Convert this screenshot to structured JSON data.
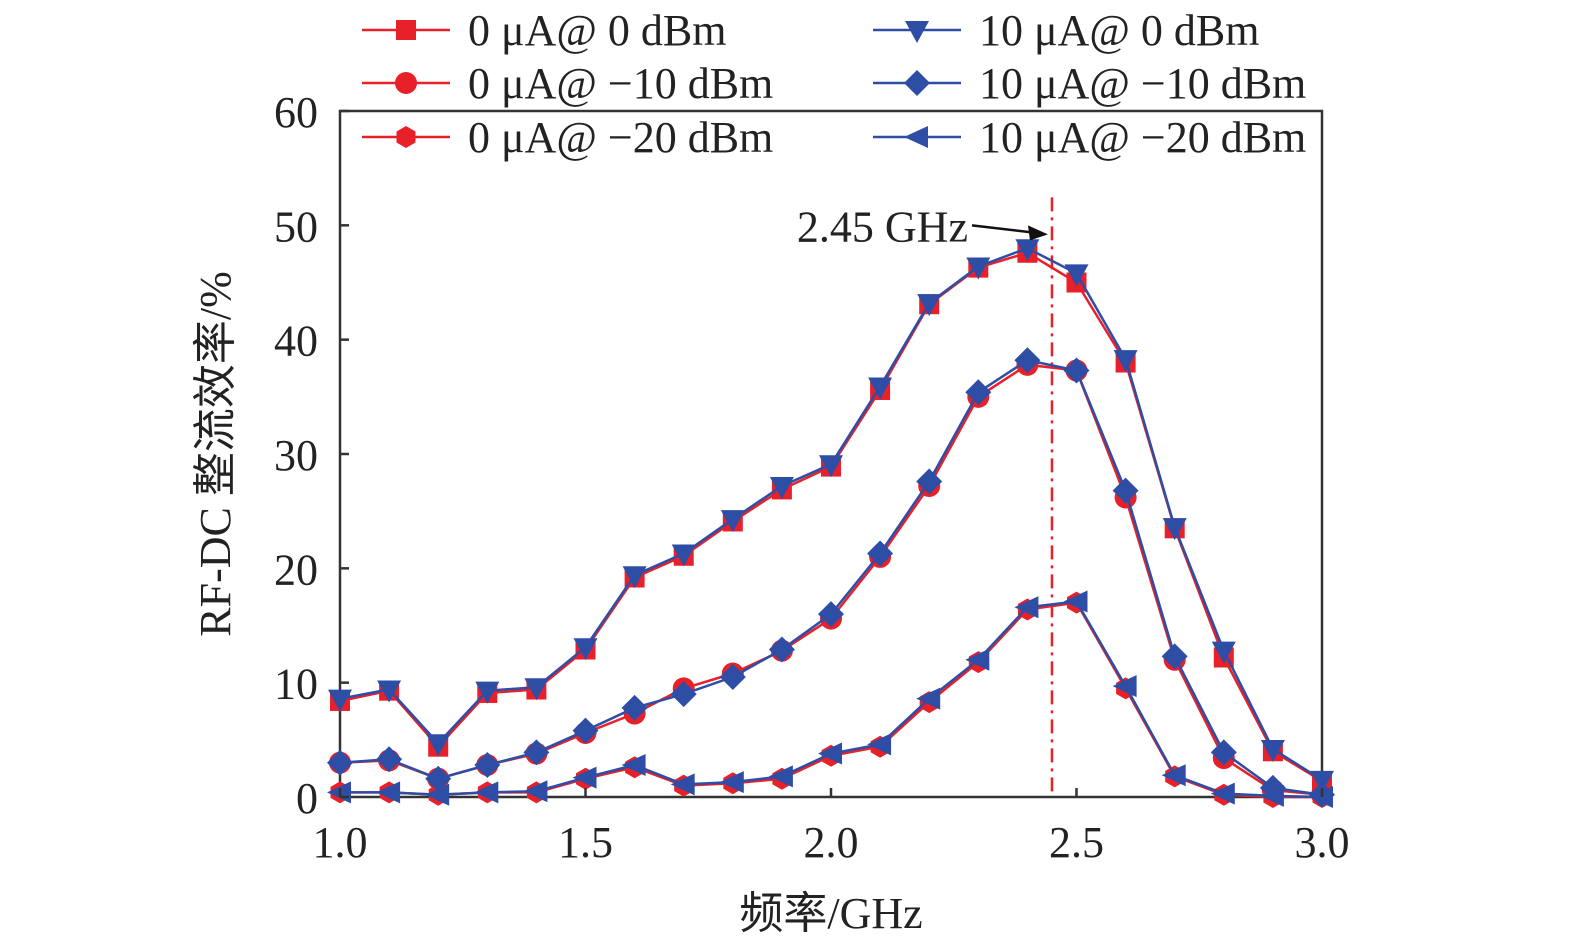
{
  "chart_data": {
    "type": "line",
    "title": "",
    "xlabel": "频率/GHz",
    "ylabel": "RF-DC 整流效率/%",
    "xlim": [
      1.0,
      3.0
    ],
    "ylim": [
      0,
      60
    ],
    "xticks": [
      "1.0",
      "1.5",
      "2.0",
      "2.5",
      "3.0"
    ],
    "xtick_values": [
      1.0,
      1.5,
      2.0,
      2.5,
      3.0
    ],
    "yticks": [
      "0",
      "10",
      "20",
      "30",
      "40",
      "50",
      "60"
    ],
    "ytick_values": [
      0,
      10,
      20,
      30,
      40,
      50,
      60
    ],
    "grid": false,
    "legend_position": "top",
    "x": [
      1.0,
      1.1,
      1.2,
      1.3,
      1.4,
      1.5,
      1.6,
      1.7,
      1.8,
      1.9,
      2.0,
      2.1,
      2.2,
      2.3,
      2.4,
      2.5,
      2.6,
      2.7,
      2.8,
      2.9,
      3.0
    ],
    "series": [
      {
        "name": "0 μA@ 0 dBm",
        "color": "#e8202a",
        "marker": "square",
        "values": [
          8.4,
          9.3,
          4.4,
          9.1,
          9.4,
          12.9,
          19.2,
          21.1,
          24.1,
          26.9,
          28.9,
          35.6,
          43.1,
          46.3,
          47.6,
          45.0,
          38.0,
          23.5,
          12.2,
          4.0,
          1.4
        ]
      },
      {
        "name": "0 μA@ −10 dBm",
        "color": "#e8202a",
        "marker": "circle",
        "values": [
          3.0,
          3.2,
          1.6,
          2.8,
          3.8,
          5.6,
          7.3,
          9.5,
          10.8,
          12.8,
          15.6,
          21.0,
          27.2,
          35.0,
          37.8,
          37.3,
          26.2,
          12.0,
          3.4,
          0.6,
          0.2
        ]
      },
      {
        "name": "0 μA@ −20 dBm",
        "color": "#e8202a",
        "marker": "hexagon",
        "values": [
          0.4,
          0.4,
          0.2,
          0.4,
          0.4,
          1.6,
          2.6,
          1.0,
          1.2,
          1.6,
          3.6,
          4.4,
          8.3,
          11.8,
          16.4,
          17.0,
          9.5,
          1.8,
          0.2,
          0.0,
          0.0
        ]
      },
      {
        "name": "10 μA@ 0 dBm",
        "color": "#2e4ea6",
        "marker": "triangle-down",
        "values": [
          8.6,
          9.4,
          4.7,
          9.3,
          9.6,
          13.1,
          19.4,
          21.3,
          24.3,
          27.2,
          29.1,
          35.9,
          43.2,
          46.4,
          48.0,
          45.8,
          38.3,
          23.6,
          12.8,
          4.2,
          1.5
        ]
      },
      {
        "name": "10 μA@ −10 dBm",
        "color": "#2e4ea6",
        "marker": "diamond",
        "values": [
          3.0,
          3.3,
          1.6,
          2.8,
          3.9,
          5.8,
          7.8,
          9.0,
          10.5,
          12.9,
          16.0,
          21.3,
          27.6,
          35.4,
          38.2,
          37.3,
          26.8,
          12.3,
          3.9,
          0.8,
          0.2
        ]
      },
      {
        "name": "10 μA@ −20 dBm",
        "color": "#2e4ea6",
        "marker": "triangle-left",
        "values": [
          0.4,
          0.4,
          0.2,
          0.4,
          0.5,
          1.7,
          2.8,
          1.1,
          1.3,
          1.8,
          3.8,
          4.6,
          8.6,
          12.0,
          16.6,
          17.1,
          9.7,
          1.9,
          0.3,
          0.1,
          0.0
        ]
      }
    ],
    "reference_line": {
      "x": 2.45,
      "color": "#e8202a",
      "style": "dash-dot"
    },
    "annotation": {
      "text": "2.45 GHz",
      "target_x": 2.45,
      "target_y": 48
    }
  }
}
